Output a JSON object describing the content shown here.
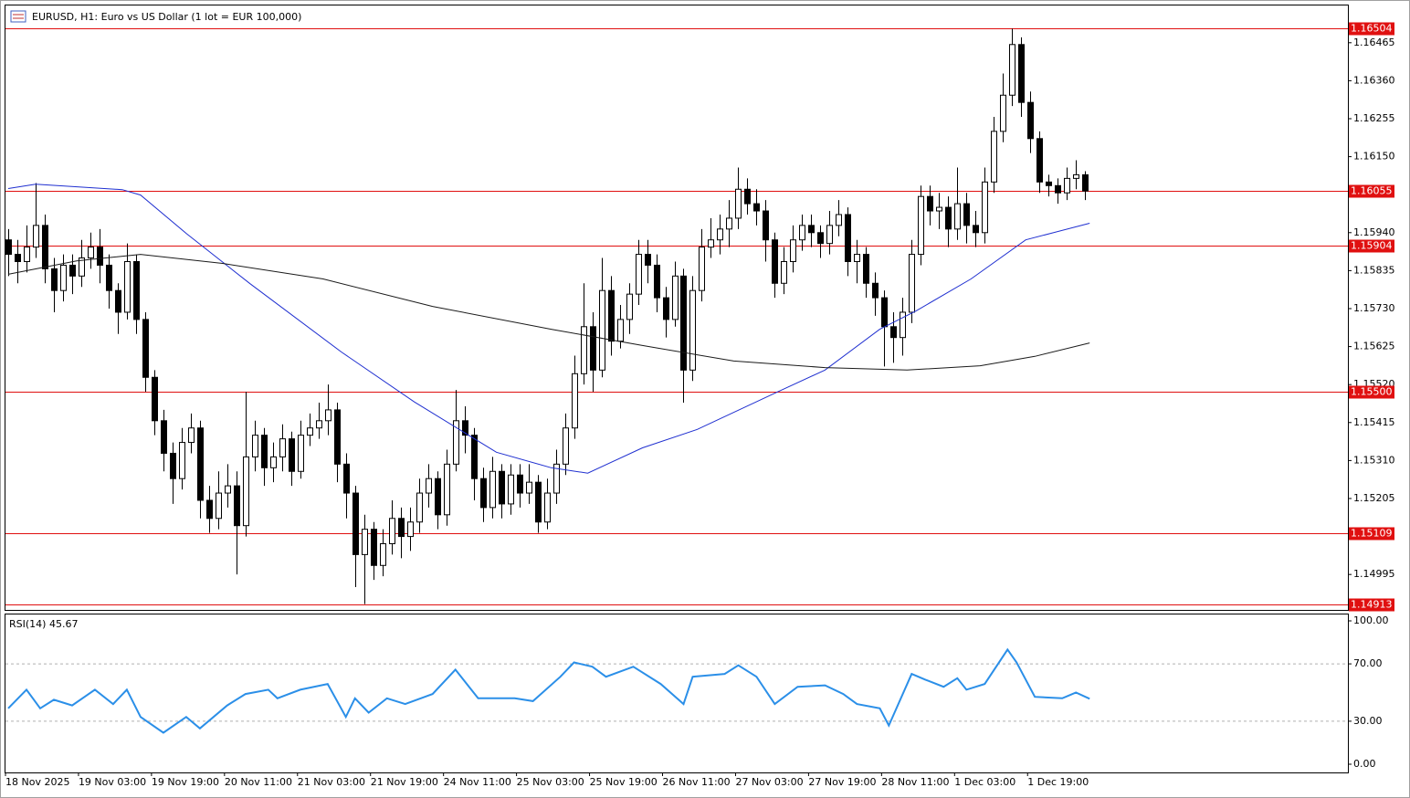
{
  "chart_data": {
    "type": "candlestick",
    "title": "EURUSD, H1:  Euro vs US Dollar (1 lot = EUR 100,000)",
    "xlim": [
      0,
      147.1
    ],
    "xticks": [
      {
        "value": 0,
        "label": "18 Nov 2025"
      },
      {
        "value": 8,
        "label": "19 Nov 03:00"
      },
      {
        "value": 16,
        "label": "19 Nov 19:00"
      },
      {
        "value": 24,
        "label": "20 Nov 11:00"
      },
      {
        "value": 32,
        "label": "21 Nov 03:00"
      },
      {
        "value": 40,
        "label": "21 Nov 19:00"
      },
      {
        "value": 48,
        "label": "24 Nov 11:00"
      },
      {
        "value": 56,
        "label": "25 Nov 03:00"
      },
      {
        "value": 64,
        "label": "25 Nov 19:00"
      },
      {
        "value": 72,
        "label": "26 Nov 11:00"
      },
      {
        "value": 80,
        "label": "27 Nov 03:00"
      },
      {
        "value": 88,
        "label": "27 Nov 19:00"
      },
      {
        "value": 96,
        "label": "28 Nov 11:00"
      },
      {
        "value": 104,
        "label": "1 Dec 03:00"
      },
      {
        "value": 112,
        "label": "1 Dec 19:00"
      }
    ],
    "ylim": [
      1.14897,
      1.16568
    ],
    "yticks": [
      {
        "value": 1.16465,
        "label": "1.16465"
      },
      {
        "value": 1.1636,
        "label": "1.16360"
      },
      {
        "value": 1.16255,
        "label": "1.16255"
      },
      {
        "value": 1.1615,
        "label": "1.16150"
      },
      {
        "value": 1.1594,
        "label": "1.15940"
      },
      {
        "value": 1.15835,
        "label": "1.15835"
      },
      {
        "value": 1.1573,
        "label": "1.15730"
      },
      {
        "value": 1.15625,
        "label": "1.15625"
      },
      {
        "value": 1.1552,
        "label": "1.15520"
      },
      {
        "value": 1.15415,
        "label": "1.15415"
      },
      {
        "value": 1.1531,
        "label": "1.15310"
      },
      {
        "value": 1.15205,
        "label": "1.15205"
      },
      {
        "value": 1.14995,
        "label": "1.14995"
      }
    ],
    "candle_color": "#000000",
    "bull_fill": "#ffffff",
    "open": [
      1.1592,
      1.1588,
      1.1586,
      1.159,
      1.1596,
      1.1584,
      1.1578,
      1.1585,
      1.1582,
      1.1587,
      1.159,
      1.1585,
      1.1578,
      1.1572,
      1.1586,
      1.157,
      1.1554,
      1.1542,
      1.1533,
      1.1526,
      1.1536,
      1.154,
      1.152,
      1.1515,
      1.1522,
      1.1524,
      1.1513,
      1.1532,
      1.1538,
      1.1529,
      1.1532,
      1.1537,
      1.1528,
      1.1538,
      1.154,
      1.1542,
      1.1545,
      1.153,
      1.1522,
      1.1505,
      1.1512,
      1.1502,
      1.1508,
      1.1515,
      1.151,
      1.1514,
      1.1522,
      1.1526,
      1.1516,
      1.153,
      1.1542,
      1.1538,
      1.1526,
      1.1518,
      1.1528,
      1.1519,
      1.1527,
      1.1522,
      1.1525,
      1.1514,
      1.1522,
      1.153,
      1.154,
      1.1555,
      1.1568,
      1.1556,
      1.1578,
      1.1564,
      1.157,
      1.1577,
      1.1588,
      1.1585,
      1.1576,
      1.157,
      1.1582,
      1.1556,
      1.1578,
      1.159,
      1.1592,
      1.1595,
      1.1598,
      1.1606,
      1.1602,
      1.16,
      1.1592,
      1.158,
      1.1586,
      1.1592,
      1.1596,
      1.1594,
      1.1591,
      1.1596,
      1.1599,
      1.1586,
      1.1588,
      1.158,
      1.1576,
      1.1568,
      1.1565,
      1.1572,
      1.1588,
      1.1604,
      1.16,
      1.1601,
      1.1595,
      1.1602,
      1.1596,
      1.1594,
      1.1608,
      1.1622,
      1.1632,
      1.1646,
      1.163,
      1.162,
      1.1608,
      1.1607,
      1.1605,
      1.1609,
      1.161
    ],
    "high": [
      1.1595,
      1.1592,
      1.1596,
      1.16077,
      1.1599,
      1.1587,
      1.1588,
      1.1588,
      1.1592,
      1.1594,
      1.1595,
      1.1588,
      1.158,
      1.1591,
      1.1588,
      1.1572,
      1.1556,
      1.1545,
      1.1536,
      1.154,
      1.1544,
      1.1542,
      1.1524,
      1.1528,
      1.153,
      1.1528,
      1.155,
      1.1542,
      1.154,
      1.1536,
      1.1541,
      1.1539,
      1.1542,
      1.1544,
      1.1547,
      1.1552,
      1.1547,
      1.1533,
      1.1524,
      1.1516,
      1.1514,
      1.1512,
      1.152,
      1.1518,
      1.1518,
      1.1526,
      1.153,
      1.1528,
      1.1534,
      1.15505,
      1.1546,
      1.154,
      1.1529,
      1.1532,
      1.153,
      1.153,
      1.153,
      1.153,
      1.1527,
      1.1526,
      1.1534,
      1.1544,
      1.156,
      1.158,
      1.1572,
      1.1587,
      1.1582,
      1.1574,
      1.158,
      1.1592,
      1.1592,
      1.1588,
      1.1579,
      1.1586,
      1.1584,
      1.1582,
      1.1595,
      1.1598,
      1.1599,
      1.1603,
      1.1612,
      1.1609,
      1.1606,
      1.1603,
      1.1594,
      1.159,
      1.1596,
      1.1599,
      1.1599,
      1.1596,
      1.16,
      1.1603,
      1.1601,
      1.1592,
      1.159,
      1.1583,
      1.1578,
      1.1572,
      1.1576,
      1.1592,
      1.1607,
      1.1607,
      1.1605,
      1.1604,
      1.1612,
      1.1605,
      1.16,
      1.1612,
      1.1626,
      1.1638,
      1.16504,
      1.1648,
      1.1633,
      1.1622,
      1.161,
      1.1609,
      1.1612,
      1.1614,
      1.1611
    ],
    "low": [
      1.1582,
      1.158,
      1.1583,
      1.1587,
      1.158,
      1.1572,
      1.1575,
      1.1577,
      1.1579,
      1.1584,
      1.158,
      1.1573,
      1.1566,
      1.157,
      1.1566,
      1.155,
      1.1538,
      1.1528,
      1.1519,
      1.1523,
      1.1533,
      1.1515,
      1.1511,
      1.1512,
      1.1518,
      1.14995,
      1.151,
      1.1528,
      1.1524,
      1.1525,
      1.1528,
      1.1524,
      1.1526,
      1.1535,
      1.1537,
      1.1538,
      1.1525,
      1.1515,
      1.1496,
      1.14913,
      1.1498,
      1.1499,
      1.1505,
      1.1504,
      1.1506,
      1.1511,
      1.1518,
      1.1512,
      1.1513,
      1.1528,
      1.1533,
      1.152,
      1.1514,
      1.1515,
      1.1515,
      1.1516,
      1.1518,
      1.1519,
      1.1511,
      1.1512,
      1.1519,
      1.1527,
      1.1537,
      1.1552,
      1.155,
      1.1554,
      1.156,
      1.1562,
      1.1566,
      1.1574,
      1.158,
      1.1572,
      1.1565,
      1.1568,
      1.1547,
      1.1553,
      1.1575,
      1.1587,
      1.1588,
      1.159,
      1.1595,
      1.1599,
      1.1596,
      1.1586,
      1.1576,
      1.1577,
      1.1583,
      1.1589,
      1.159,
      1.1587,
      1.1588,
      1.1593,
      1.1582,
      1.158,
      1.1576,
      1.1571,
      1.1557,
      1.1558,
      1.156,
      1.1569,
      1.1585,
      1.1596,
      1.1595,
      1.159,
      1.1592,
      1.1591,
      1.159,
      1.1591,
      1.1605,
      1.1619,
      1.1629,
      1.1626,
      1.1616,
      1.1605,
      1.1604,
      1.1602,
      1.1603,
      1.1606,
      1.1603
    ],
    "close": [
      1.1588,
      1.1586,
      1.159,
      1.1596,
      1.1584,
      1.1578,
      1.1585,
      1.1582,
      1.1587,
      1.159,
      1.1585,
      1.1578,
      1.1572,
      1.1586,
      1.157,
      1.1554,
      1.1542,
      1.1533,
      1.1526,
      1.1536,
      1.154,
      1.152,
      1.1515,
      1.1522,
      1.1524,
      1.1513,
      1.1532,
      1.1538,
      1.1529,
      1.1532,
      1.1537,
      1.1528,
      1.1538,
      1.154,
      1.1542,
      1.1545,
      1.153,
      1.1522,
      1.1505,
      1.1512,
      1.1502,
      1.1508,
      1.1515,
      1.151,
      1.1514,
      1.1522,
      1.1526,
      1.1516,
      1.153,
      1.1542,
      1.1538,
      1.1526,
      1.1518,
      1.1528,
      1.1519,
      1.1527,
      1.1522,
      1.1525,
      1.1514,
      1.1522,
      1.153,
      1.154,
      1.1555,
      1.1568,
      1.1556,
      1.1578,
      1.1564,
      1.157,
      1.1577,
      1.1588,
      1.1585,
      1.1576,
      1.157,
      1.1582,
      1.1556,
      1.1578,
      1.159,
      1.1592,
      1.1595,
      1.1598,
      1.1606,
      1.1602,
      1.16,
      1.1592,
      1.158,
      1.1586,
      1.1592,
      1.1596,
      1.1594,
      1.1591,
      1.1596,
      1.1599,
      1.1586,
      1.1588,
      1.158,
      1.1576,
      1.1568,
      1.1565,
      1.1572,
      1.1588,
      1.1604,
      1.16,
      1.1601,
      1.1595,
      1.1602,
      1.1596,
      1.1594,
      1.1608,
      1.1622,
      1.1632,
      1.1646,
      1.163,
      1.162,
      1.1608,
      1.1607,
      1.1605,
      1.1609,
      1.161,
      1.16055
    ],
    "moving_averages": [
      {
        "color": "#1f2fd0",
        "x": [
          0,
          3,
          12.5,
          14.5,
          19.5,
          26.5,
          36.5,
          44.5,
          53.5,
          59.5,
          63.5,
          69.5,
          75.5,
          84.5,
          89.5,
          95.5,
          99.5,
          105.5,
          111.5,
          118.5
        ],
        "values": [
          1.16062,
          1.16074,
          1.16059,
          1.16044,
          1.15938,
          1.15799,
          1.1561,
          1.15472,
          1.15333,
          1.1529,
          1.15275,
          1.15345,
          1.15396,
          1.15502,
          1.1556,
          1.15673,
          1.15724,
          1.15812,
          1.1592,
          1.15966
        ]
      },
      {
        "color": "#1a1a1a",
        "x": [
          0,
          7.5,
          14.5,
          23.5,
          34.5,
          46.5,
          59.5,
          69.5,
          79.5,
          89.5,
          98.5,
          106.5,
          112.5,
          118.5
        ],
        "values": [
          1.15825,
          1.15862,
          1.1588,
          1.15855,
          1.15812,
          1.15736,
          1.15673,
          1.15628,
          1.15585,
          1.15567,
          1.1556,
          1.15572,
          1.15598,
          1.15635
        ]
      }
    ],
    "level_color": "#e01010",
    "levels": [
      {
        "value": 1.16504,
        "label": "1.16504"
      },
      {
        "value": 1.16055,
        "label": "1.16055"
      },
      {
        "value": 1.15904,
        "label": "1.15904"
      },
      {
        "value": 1.155,
        "label": "1.15500"
      },
      {
        "value": 1.15109,
        "label": "1.15109"
      },
      {
        "value": 1.14913,
        "label": "1.14913"
      }
    ],
    "rsi": {
      "label": "RSI(14) 45.67",
      "color": "#2b8fe8",
      "ylim": [
        0,
        100
      ],
      "yticks": [
        {
          "value": 0,
          "label": "0.00"
        },
        {
          "value": 30,
          "label": "30.00"
        },
        {
          "value": 70,
          "label": "70.00"
        },
        {
          "value": 100,
          "label": "100.00"
        }
      ],
      "x": [
        0,
        2,
        3.5,
        5,
        7,
        9.5,
        11.5,
        13,
        14.5,
        17,
        19.5,
        21,
        24,
        26,
        28.5,
        29.5,
        32,
        35,
        37,
        38,
        39.5,
        41.5,
        43.5,
        46.5,
        49,
        51.5,
        55.5,
        57.5,
        60.5,
        62,
        64,
        65.5,
        68.5,
        71.5,
        74,
        75,
        78.5,
        80,
        82,
        84,
        86.5,
        89.5,
        91.5,
        93,
        95.5,
        96.5,
        99,
        100.5,
        102.5,
        104,
        105,
        107,
        109.5,
        110.5,
        112.5,
        115.5,
        117,
        118.5
      ],
      "values": [
        39,
        52,
        39,
        45,
        41,
        52,
        42,
        52,
        33,
        22,
        33,
        25,
        41,
        49,
        52,
        46,
        52,
        56,
        33,
        46,
        36,
        46,
        42,
        49,
        66,
        46,
        46,
        44,
        61,
        71,
        68,
        61,
        68,
        56,
        42,
        61,
        63,
        69,
        61,
        42,
        54,
        55,
        49,
        42,
        39,
        27,
        63,
        59,
        54,
        60,
        52,
        56,
        80,
        71,
        47,
        46,
        50,
        45.67
      ]
    }
  }
}
